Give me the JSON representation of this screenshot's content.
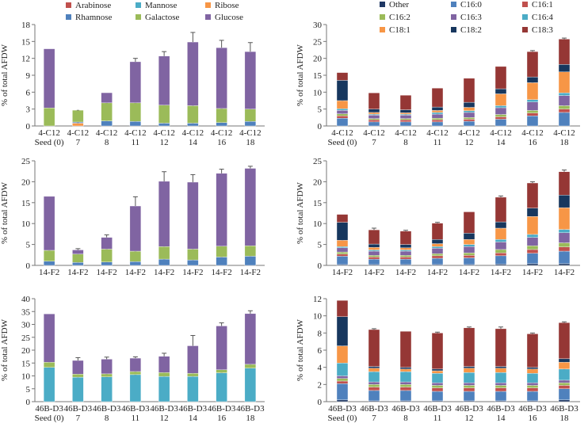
{
  "figure": {
    "legend_left": [
      {
        "name": "Arabinose",
        "color": "#C0504D"
      },
      {
        "name": "Mannose",
        "color": "#4BACC6"
      },
      {
        "name": "Ribose",
        "color": "#F79646"
      },
      {
        "name": "Rhamnose",
        "color": "#4F81BD"
      },
      {
        "name": "Galactose",
        "color": "#9BBB59"
      },
      {
        "name": "Glucose",
        "color": "#8064A2"
      }
    ],
    "legend_right": [
      {
        "name": "Other",
        "color": "#1F3864"
      },
      {
        "name": "C16:0",
        "color": "#4F81BD"
      },
      {
        "name": "C16:1",
        "color": "#C0504D"
      },
      {
        "name": "C16:2",
        "color": "#9BBB59"
      },
      {
        "name": "C16:3",
        "color": "#8064A2"
      },
      {
        "name": "C16:4",
        "color": "#4BACC6"
      },
      {
        "name": "C18:1",
        "color": "#F79646"
      },
      {
        "name": "C18:2",
        "color": "#17375E"
      },
      {
        "name": "C18:3",
        "color": "#953735"
      }
    ]
  },
  "chart_data": [
    {
      "type": "bar",
      "stacked": true,
      "panel": "left-top",
      "ylabel": "% of total AFDW",
      "ylim": [
        0,
        18
      ],
      "yticks": [
        0,
        3,
        6,
        9,
        12,
        15,
        18
      ],
      "strain": "4-C12",
      "categories": [
        "Seed (0)",
        "7",
        "8",
        "11",
        "12",
        "14",
        "16",
        "18"
      ],
      "series": [
        {
          "name": "Arabinose",
          "color": "#C0504D",
          "values": [
            0,
            0,
            0,
            0,
            0,
            0,
            0,
            0
          ]
        },
        {
          "name": "Mannose",
          "color": "#4BACC6",
          "values": [
            0,
            0,
            0,
            0,
            0,
            0,
            0,
            0
          ]
        },
        {
          "name": "Ribose",
          "color": "#F79646",
          "values": [
            0,
            0.5,
            0,
            0,
            0,
            0,
            0,
            0
          ]
        },
        {
          "name": "Rhamnose",
          "color": "#4F81BD",
          "values": [
            0,
            0.2,
            0.9,
            0.8,
            0.5,
            0.5,
            0.6,
            0.8
          ]
        },
        {
          "name": "Galactose",
          "color": "#9BBB59",
          "values": [
            3.2,
            2.1,
            3.2,
            3.3,
            3.2,
            3.1,
            2.5,
            2.2
          ]
        },
        {
          "name": "Glucose",
          "color": "#8064A2",
          "values": [
            10.5,
            0,
            1.8,
            7.3,
            8.7,
            11.3,
            10.8,
            10.2
          ]
        }
      ],
      "errors": [
        0,
        0,
        0,
        0.6,
        0.8,
        1.7,
        1.3,
        1.6
      ]
    },
    {
      "type": "bar",
      "stacked": true,
      "panel": "right-top",
      "ylabel": "% of total AFDW",
      "ylim": [
        0,
        30
      ],
      "yticks": [
        0,
        5,
        10,
        15,
        20,
        25,
        30
      ],
      "strain": "4-C12",
      "categories": [
        "Seed (0)",
        "7",
        "8",
        "11",
        "12",
        "14",
        "16",
        "18"
      ],
      "series": [
        {
          "name": "Other",
          "color": "#1F3864",
          "values": [
            0,
            0,
            0,
            0,
            0,
            0,
            0,
            0
          ]
        },
        {
          "name": "C16:0",
          "color": "#4F81BD",
          "values": [
            2.3,
            1.2,
            1.2,
            1.2,
            1.4,
            2.0,
            3.0,
            4.0
          ]
        },
        {
          "name": "C16:1",
          "color": "#C0504D",
          "values": [
            0.7,
            0.6,
            0.6,
            0.6,
            0.6,
            0.7,
            0.8,
            1.0
          ]
        },
        {
          "name": "C16:2",
          "color": "#9BBB59",
          "values": [
            0.6,
            0.4,
            0.4,
            0.5,
            0.5,
            0.7,
            0.8,
            1.0
          ]
        },
        {
          "name": "C16:3",
          "color": "#8064A2",
          "values": [
            1.0,
            1.0,
            1.0,
            1.2,
            1.5,
            2.0,
            2.5,
            3.0
          ]
        },
        {
          "name": "C16:4",
          "color": "#4BACC6",
          "values": [
            0.5,
            0.3,
            0.3,
            0.5,
            0.5,
            0.6,
            0.7,
            0.8
          ]
        },
        {
          "name": "C18:1",
          "color": "#F79646",
          "values": [
            2.4,
            0.5,
            0.4,
            0.6,
            1.0,
            3.5,
            5.0,
            6.2
          ]
        },
        {
          "name": "C18:2",
          "color": "#17375E",
          "values": [
            6.0,
            1.0,
            0.9,
            1.0,
            1.5,
            1.5,
            1.7,
            2.2
          ]
        },
        {
          "name": "C18:3",
          "color": "#953735",
          "values": [
            2.3,
            4.8,
            4.3,
            5.6,
            7.1,
            6.6,
            7.5,
            7.5
          ]
        }
      ],
      "errors": [
        0,
        0,
        0,
        0,
        0,
        0,
        0.3,
        0.3
      ]
    },
    {
      "type": "bar",
      "stacked": true,
      "panel": "left-middle",
      "ylabel": "% of total AFDW",
      "ylim": [
        0,
        25
      ],
      "yticks": [
        0,
        5,
        10,
        15,
        20,
        25
      ],
      "strain": "14-F2",
      "categories": [
        "",
        "",
        "",
        "",
        "",
        "",
        "",
        ""
      ],
      "series": [
        {
          "name": "Arabinose",
          "color": "#C0504D",
          "values": [
            0,
            0,
            0,
            0,
            0,
            0,
            0,
            0
          ]
        },
        {
          "name": "Mannose",
          "color": "#4BACC6",
          "values": [
            0,
            0,
            0,
            0,
            0,
            0,
            0,
            0
          ]
        },
        {
          "name": "Ribose",
          "color": "#F79646",
          "values": [
            0,
            0,
            0,
            0,
            0,
            0,
            0,
            0
          ]
        },
        {
          "name": "Rhamnose",
          "color": "#4F81BD",
          "values": [
            1.0,
            0.7,
            0.8,
            0.9,
            1.5,
            1.3,
            2.0,
            2.2
          ]
        },
        {
          "name": "Galactose",
          "color": "#9BBB59",
          "values": [
            2.6,
            2.0,
            3.1,
            2.5,
            3.0,
            2.6,
            2.6,
            2.5
          ]
        },
        {
          "name": "Glucose",
          "color": "#8064A2",
          "values": [
            12.9,
            1.0,
            2.8,
            10.8,
            15.6,
            16.0,
            17.4,
            18.5
          ]
        }
      ],
      "errors": [
        0,
        0.3,
        0.6,
        2.2,
        2.3,
        1.8,
        1.0,
        0.5
      ]
    },
    {
      "type": "bar",
      "stacked": true,
      "panel": "right-middle",
      "ylabel": "% of total AFDW",
      "ylim": [
        0,
        25
      ],
      "yticks": [
        0,
        5,
        10,
        15,
        20,
        25
      ],
      "strain": "14-F2",
      "categories": [
        "",
        "",
        "",
        "",
        "",
        "",
        "",
        ""
      ],
      "series": [
        {
          "name": "Other",
          "color": "#1F3864",
          "values": [
            0.2,
            0.2,
            0.2,
            0.2,
            0.2,
            0.3,
            0.4,
            0.4
          ]
        },
        {
          "name": "C16:0",
          "color": "#4F81BD",
          "values": [
            2.0,
            1.3,
            1.3,
            1.5,
            1.6,
            2.0,
            2.5,
            3.0
          ]
        },
        {
          "name": "C16:1",
          "color": "#C0504D",
          "values": [
            0.5,
            0.5,
            0.5,
            0.6,
            0.6,
            0.7,
            0.9,
            1.0
          ]
        },
        {
          "name": "C16:2",
          "color": "#9BBB59",
          "values": [
            0.5,
            0.4,
            0.4,
            0.5,
            0.6,
            0.8,
            0.9,
            1.0
          ]
        },
        {
          "name": "C16:3",
          "color": "#8064A2",
          "values": [
            1.0,
            1.0,
            1.0,
            1.3,
            1.5,
            1.8,
            2.0,
            2.4
          ]
        },
        {
          "name": "C16:4",
          "color": "#4BACC6",
          "values": [
            0.3,
            0.3,
            0.3,
            0.4,
            0.5,
            0.6,
            0.7,
            0.8
          ]
        },
        {
          "name": "C18:1",
          "color": "#F79646",
          "values": [
            1.5,
            0.6,
            0.5,
            0.7,
            1.2,
            2.7,
            4.3,
            5.2
          ]
        },
        {
          "name": "C18:2",
          "color": "#17375E",
          "values": [
            4.3,
            0.8,
            0.8,
            1.0,
            1.5,
            1.5,
            2.0,
            3.0
          ]
        },
        {
          "name": "C18:3",
          "color": "#953735",
          "values": [
            1.9,
            3.4,
            3.2,
            3.9,
            5.1,
            5.9,
            6.0,
            5.6
          ]
        }
      ],
      "errors": [
        0,
        0.4,
        0.2,
        0.2,
        0,
        0.3,
        0.3,
        0.4
      ]
    },
    {
      "type": "bar",
      "stacked": true,
      "panel": "left-bottom",
      "ylabel": "% of total AFDW",
      "ylim": [
        0,
        40
      ],
      "yticks": [
        0,
        5,
        10,
        15,
        20,
        25,
        30,
        35,
        40
      ],
      "strain": "46B-D3",
      "categories": [
        "Seed (0)",
        "7",
        "8",
        "11",
        "12",
        "14",
        "16",
        "18"
      ],
      "series": [
        {
          "name": "Arabinose",
          "color": "#C0504D",
          "values": [
            0,
            0,
            0,
            0,
            0,
            0,
            0,
            0
          ]
        },
        {
          "name": "Mannose",
          "color": "#4BACC6",
          "values": [
            13.3,
            9.5,
            9.6,
            10.5,
            9.8,
            9.8,
            11.2,
            13.0
          ]
        },
        {
          "name": "Ribose",
          "color": "#F79646",
          "values": [
            0,
            0,
            0,
            0,
            0,
            0,
            0,
            0
          ]
        },
        {
          "name": "Rhamnose",
          "color": "#4F81BD",
          "values": [
            0,
            0,
            0,
            0,
            0,
            0,
            0,
            0
          ]
        },
        {
          "name": "Galactose",
          "color": "#9BBB59",
          "values": [
            2.0,
            1.2,
            1.2,
            1.2,
            1.5,
            1.2,
            1.2,
            1.5
          ]
        },
        {
          "name": "Glucose",
          "color": "#8064A2",
          "values": [
            18.8,
            5.3,
            5.7,
            5.2,
            6.3,
            10.7,
            17.0,
            19.7
          ]
        }
      ],
      "errors": [
        0,
        1.1,
        0.8,
        0.5,
        1.2,
        4.0,
        1.2,
        1.1
      ]
    },
    {
      "type": "bar",
      "stacked": true,
      "panel": "right-bottom",
      "ylabel": "% of total AFDW",
      "ylim": [
        0,
        12
      ],
      "yticks": [
        0,
        2,
        4,
        6,
        8,
        10,
        12
      ],
      "strain": "46B-D3",
      "categories": [
        "Seed (0)",
        "7",
        "8",
        "11",
        "12",
        "14",
        "16",
        "18"
      ],
      "series": [
        {
          "name": "Other",
          "color": "#1F3864",
          "values": [
            0.2,
            0.1,
            0.1,
            0.1,
            0.1,
            0.1,
            0.1,
            0.2
          ]
        },
        {
          "name": "C16:0",
          "color": "#4F81BD",
          "values": [
            1.9,
            1.2,
            1.2,
            1.1,
            1.1,
            1.1,
            1.1,
            1.3
          ]
        },
        {
          "name": "C16:1",
          "color": "#C0504D",
          "values": [
            0.3,
            0.4,
            0.4,
            0.4,
            0.4,
            0.4,
            0.4,
            0.4
          ]
        },
        {
          "name": "C16:2",
          "color": "#9BBB59",
          "values": [
            0.3,
            0.3,
            0.3,
            0.3,
            0.3,
            0.3,
            0.3,
            0.3
          ]
        },
        {
          "name": "C16:3",
          "color": "#8064A2",
          "values": [
            0.3,
            0.3,
            0.3,
            0.3,
            0.3,
            0.3,
            0.3,
            0.3
          ]
        },
        {
          "name": "C16:4",
          "color": "#4BACC6",
          "values": [
            1.5,
            1.2,
            1.2,
            1.1,
            1.2,
            1.2,
            1.1,
            1.3
          ]
        },
        {
          "name": "C18:1",
          "color": "#F79646",
          "values": [
            2.0,
            0.4,
            0.3,
            0.3,
            0.5,
            0.5,
            0.5,
            0.8
          ]
        },
        {
          "name": "C18:2",
          "color": "#17375E",
          "values": [
            3.4,
            0.2,
            0.2,
            0.2,
            0.2,
            0.2,
            0.2,
            0.4
          ]
        },
        {
          "name": "C18:3",
          "color": "#953735",
          "values": [
            1.9,
            4.3,
            4.2,
            4.2,
            4.5,
            4.4,
            3.9,
            4.2
          ]
        }
      ],
      "errors": [
        0,
        0.1,
        0,
        0.1,
        0.1,
        0.2,
        0.1,
        0.1
      ]
    }
  ]
}
